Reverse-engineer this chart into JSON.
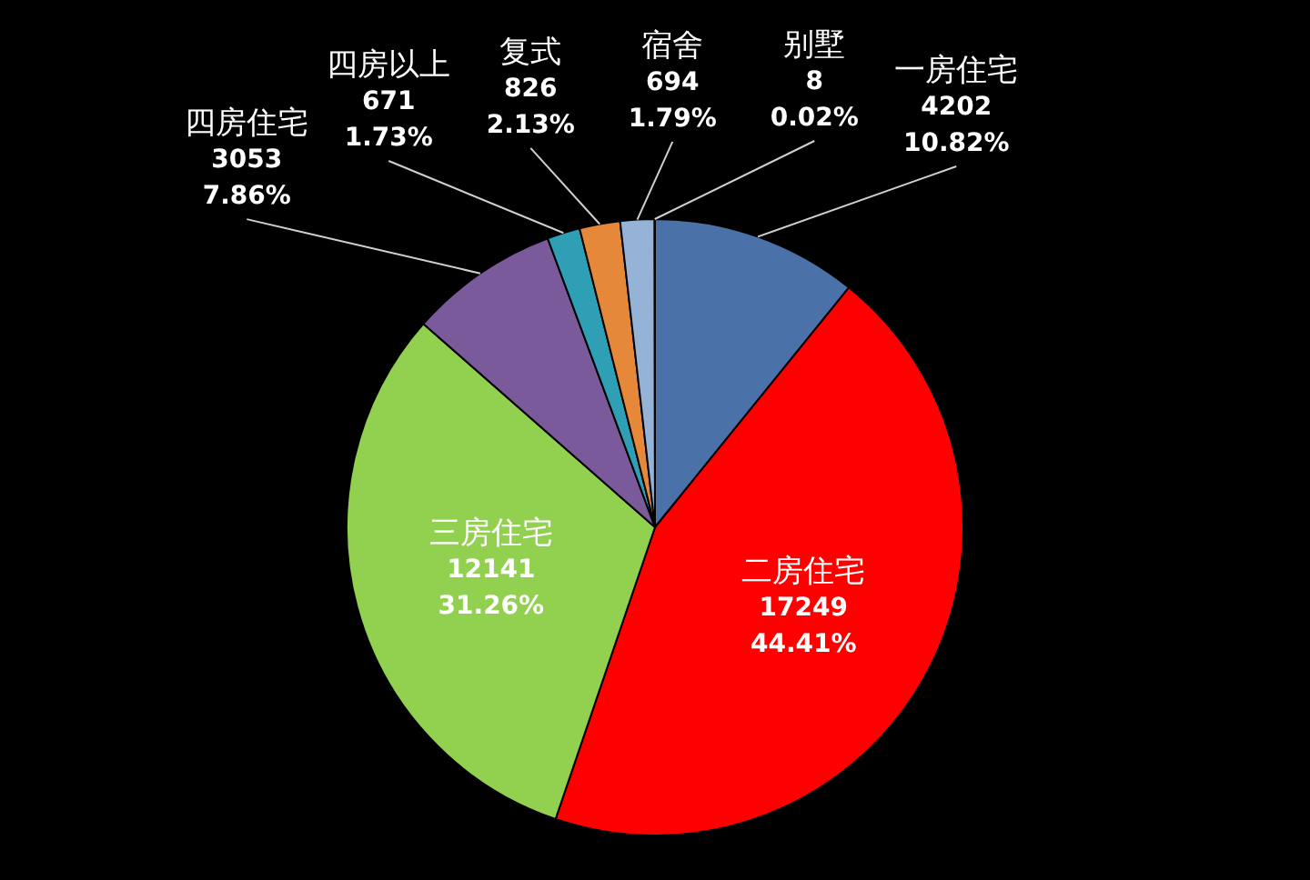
{
  "chart_data": {
    "type": "pie",
    "categories": [
      "一房住宅",
      "二房住宅",
      "三房住宅",
      "四房住宅",
      "四房以上",
      "复式",
      "宿舍",
      "别墅"
    ],
    "values": [
      4202,
      17249,
      12141,
      3053,
      671,
      826,
      694,
      8
    ],
    "colors": [
      "#4a71a8",
      "#ff0000",
      "#92d050",
      "#7a5a9a",
      "#2e9fb5",
      "#e6883a",
      "#95b3d7",
      "#c0504d"
    ],
    "value_labels": [
      "4202\n10.82%",
      "17249\n44.41%",
      "12141\n31.26%",
      "3053\n7.86%",
      "671\n1.73%",
      "826\n2.13%",
      "694\n1.79%",
      "8\n0.02%"
    ]
  }
}
